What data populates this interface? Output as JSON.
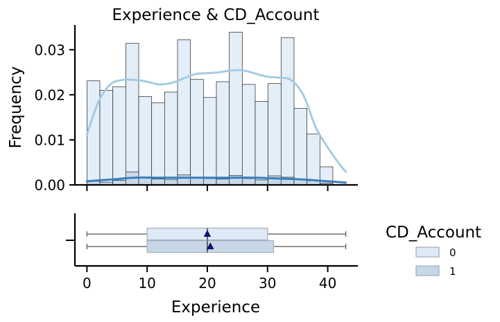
{
  "chart_data": {
    "type": "histogram+boxplot",
    "title": "Experience & CD_Account",
    "xlabel": "Experience",
    "ylabel": "Frequency",
    "xlim": [
      -2,
      45
    ],
    "ylim": [
      0,
      0.0355
    ],
    "xticks": [
      0,
      10,
      20,
      30,
      40
    ],
    "yticks": [
      0.0,
      0.01,
      0.02,
      0.03
    ],
    "ytick_labels": [
      "0.00",
      "0.01",
      "0.02",
      "0.03"
    ],
    "bin_edges": [
      0,
      2.15,
      4.3,
      6.45,
      8.6,
      10.75,
      12.9,
      15.05,
      17.2,
      19.35,
      21.5,
      23.65,
      25.8,
      27.95,
      30.1,
      32.25,
      34.4,
      36.55,
      38.7,
      40.85,
      43
    ],
    "legend": {
      "title": "CD_Account",
      "placement": "right"
    },
    "series": [
      {
        "name": "0",
        "color": "#deebf7",
        "kde_color": "#a6cbe3",
        "hist": [
          0.0231,
          0.021,
          0.0218,
          0.0314,
          0.0196,
          0.0182,
          0.0206,
          0.0322,
          0.0234,
          0.0194,
          0.0229,
          0.0339,
          0.0223,
          0.0185,
          0.0225,
          0.0327,
          0.017,
          0.0113,
          0.004,
          0.0
        ],
        "kde_x": [
          0,
          2,
          4,
          6,
          8,
          10,
          12,
          14,
          16,
          18,
          20,
          22,
          24,
          26,
          28,
          30,
          32,
          34,
          36,
          38,
          40,
          42,
          43
        ],
        "kde_y": [
          0.0112,
          0.0187,
          0.0224,
          0.0233,
          0.0233,
          0.0229,
          0.0223,
          0.0226,
          0.0236,
          0.0246,
          0.0248,
          0.025,
          0.0254,
          0.0254,
          0.0247,
          0.024,
          0.0238,
          0.0232,
          0.0198,
          0.0128,
          0.0083,
          0.0045,
          0.0029
        ],
        "box": {
          "whislo": 0,
          "q1": 10,
          "med": 20,
          "mean": 20,
          "q3": 30,
          "whishi": 43
        }
      },
      {
        "name": "1",
        "color": "#c6d7e8",
        "kde_color": "#3a7fbe",
        "hist": [
          0.0008,
          0.0006,
          0.001,
          0.0029,
          0.0016,
          0.0013,
          0.0012,
          0.0022,
          0.0016,
          0.0014,
          0.0013,
          0.0021,
          0.0014,
          0.0011,
          0.002,
          0.0017,
          0.0013,
          0.0009,
          0.0004,
          0.0
        ],
        "kde_x": [
          0,
          4,
          8,
          12,
          16,
          20,
          24,
          28,
          32,
          36,
          40,
          43
        ],
        "kde_y": [
          0.0008,
          0.0012,
          0.0016,
          0.0016,
          0.0016,
          0.0016,
          0.0016,
          0.0016,
          0.0014,
          0.0012,
          0.0008,
          0.0005
        ],
        "box": {
          "whislo": 0,
          "q1": 10,
          "med": 20,
          "mean": 20.5,
          "q3": 31,
          "whishi": 43
        }
      }
    ]
  }
}
